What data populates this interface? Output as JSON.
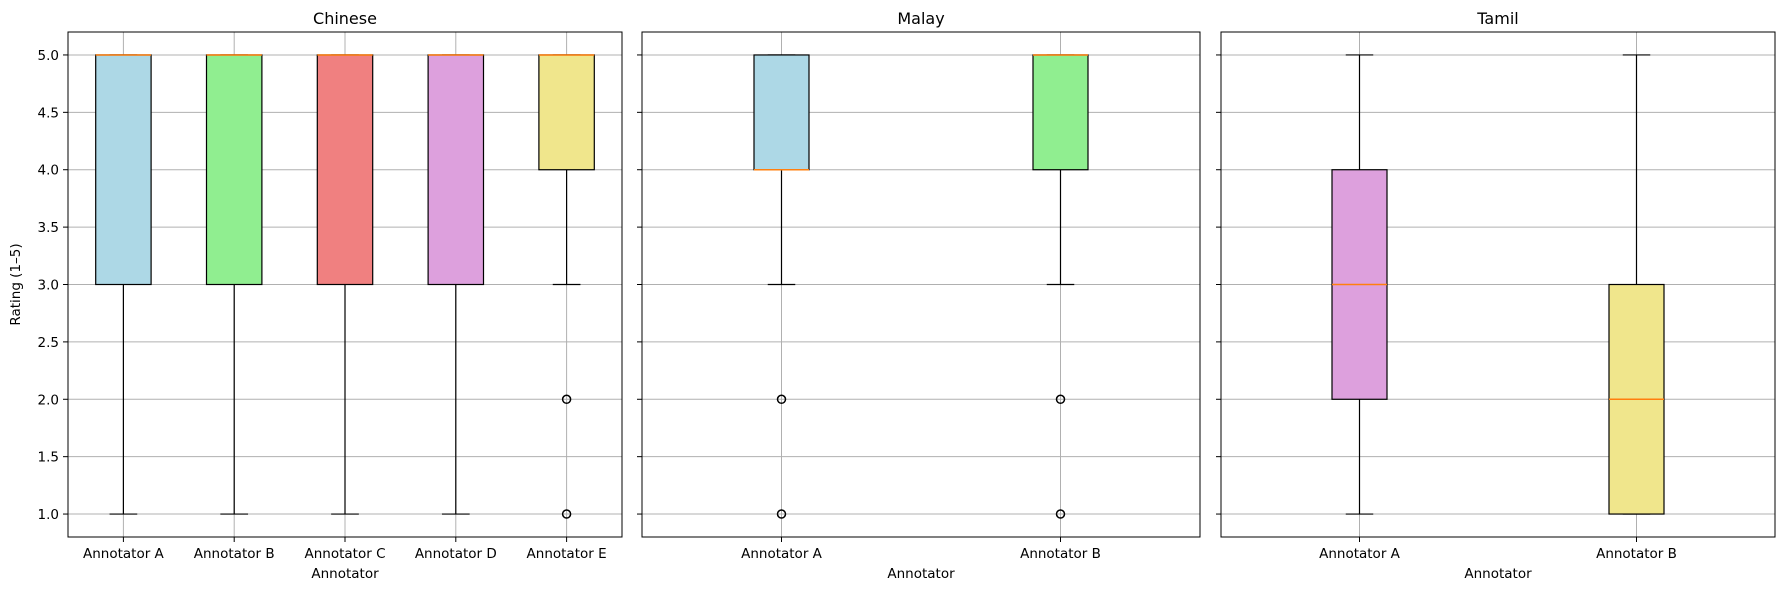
{
  "chart_data": [
    {
      "type": "box",
      "title": "Chinese",
      "xlabel": "Annotator",
      "ylabel": "Rating (1–5)",
      "ylim": [
        0.8,
        5.2
      ],
      "yticks": [
        "1.0",
        "1.5",
        "2.0",
        "2.5",
        "3.0",
        "3.5",
        "4.0",
        "4.5",
        "5.0"
      ],
      "grid": true,
      "categories": [
        "Annotator A",
        "Annotator B",
        "Annotator C",
        "Annotator D",
        "Annotator E"
      ],
      "boxes": [
        {
          "whislo": 1,
          "q1": 3,
          "med": 5,
          "q3": 5,
          "whishi": 5,
          "fliers": [],
          "color": "#add8e6"
        },
        {
          "whislo": 1,
          "q1": 3,
          "med": 5,
          "q3": 5,
          "whishi": 5,
          "fliers": [],
          "color": "#90ee90"
        },
        {
          "whislo": 1,
          "q1": 3,
          "med": 5,
          "q3": 5,
          "whishi": 5,
          "fliers": [],
          "color": "#f08080"
        },
        {
          "whislo": 1,
          "q1": 3,
          "med": 5,
          "q3": 5,
          "whishi": 5,
          "fliers": [],
          "color": "#dda0dd"
        },
        {
          "whislo": 3,
          "q1": 4,
          "med": 5,
          "q3": 5,
          "whishi": 5,
          "fliers": [
            2,
            1
          ],
          "color": "#f0e68c"
        }
      ]
    },
    {
      "type": "box",
      "title": "Malay",
      "xlabel": "Annotator",
      "ylabel": "",
      "ylim": [
        0.8,
        5.2
      ],
      "yticks": [
        "1.0",
        "1.5",
        "2.0",
        "2.5",
        "3.0",
        "3.5",
        "4.0",
        "4.5",
        "5.0"
      ],
      "grid": true,
      "categories": [
        "Annotator A",
        "Annotator B"
      ],
      "boxes": [
        {
          "whislo": 3,
          "q1": 4,
          "med": 4,
          "q3": 5,
          "whishi": 5,
          "fliers": [
            2,
            1
          ],
          "color": "#add8e6"
        },
        {
          "whislo": 3,
          "q1": 4,
          "med": 5,
          "q3": 5,
          "whishi": 5,
          "fliers": [
            2,
            1
          ],
          "color": "#90ee90"
        }
      ]
    },
    {
      "type": "box",
      "title": "Tamil",
      "xlabel": "Annotator",
      "ylabel": "",
      "ylim": [
        0.8,
        5.2
      ],
      "yticks": [
        "1.0",
        "1.5",
        "2.0",
        "2.5",
        "3.0",
        "3.5",
        "4.0",
        "4.5",
        "5.0"
      ],
      "grid": true,
      "categories": [
        "Annotator A",
        "Annotator B"
      ],
      "boxes": [
        {
          "whislo": 1,
          "q1": 2,
          "med": 3,
          "q3": 4,
          "whishi": 5,
          "fliers": [],
          "color": "#dda0dd"
        },
        {
          "whislo": 1,
          "q1": 1,
          "med": 2,
          "q3": 3,
          "whishi": 5,
          "fliers": [],
          "color": "#f0e68c"
        }
      ]
    }
  ],
  "colors": {
    "median": "#ff7f0e",
    "grid": "#b0b0b0",
    "box_edge": "#000000"
  }
}
